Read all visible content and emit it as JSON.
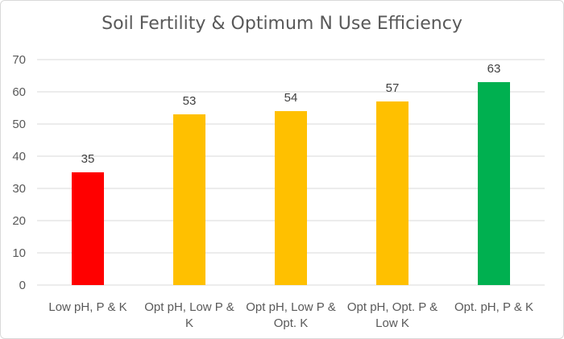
{
  "chart_data": {
    "type": "bar",
    "title": "Soil Fertility & Optimum N Use Efficiency",
    "categories": [
      [
        "Low pH, P & K"
      ],
      [
        "Opt pH, Low P &",
        "K"
      ],
      [
        "Opt pH, Low P &",
        "Opt. K"
      ],
      [
        "Opt pH, Opt. P &",
        "Low K"
      ],
      [
        "Opt. pH, P & K"
      ]
    ],
    "values": [
      35,
      53,
      54,
      57,
      63
    ],
    "colors": [
      "#ff0000",
      "#ffc000",
      "#ffc000",
      "#ffc000",
      "#00b050"
    ],
    "ylim": [
      0,
      70
    ],
    "yticks": [
      0,
      10,
      20,
      30,
      40,
      50,
      60,
      70
    ],
    "grid": true,
    "data_labels": true
  }
}
